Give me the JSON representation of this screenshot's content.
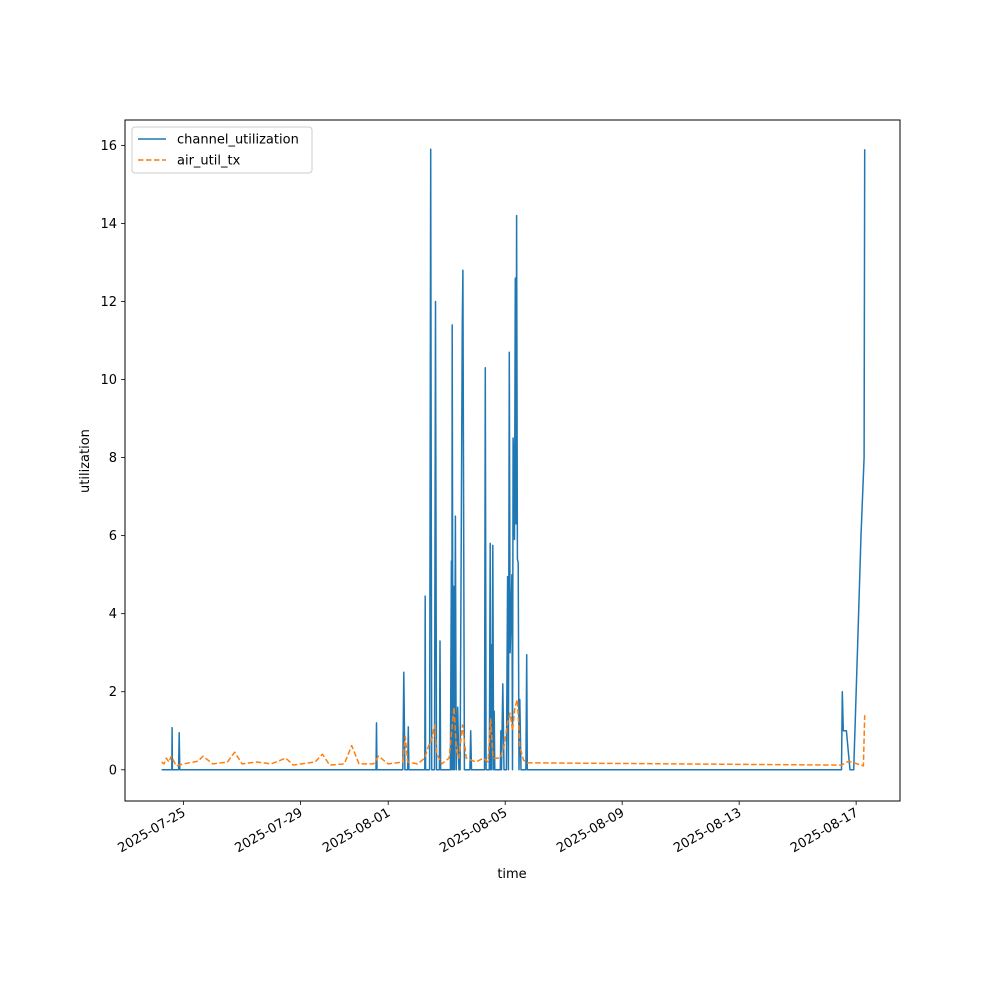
{
  "chart_data": {
    "type": "line",
    "xlabel": "time",
    "ylabel": "utilization",
    "x_range": [
      "2025-07-23T00:00",
      "2025-08-18T12:00"
    ],
    "ylim": [
      -0.8,
      16.65
    ],
    "x_ticks": [
      {
        "date": "2025-07-25T00:00",
        "label": "2025-07-25"
      },
      {
        "date": "2025-07-29T00:00",
        "label": "2025-07-29"
      },
      {
        "date": "2025-08-01T00:00",
        "label": "2025-08-01"
      },
      {
        "date": "2025-08-05T00:00",
        "label": "2025-08-05"
      },
      {
        "date": "2025-08-09T00:00",
        "label": "2025-08-09"
      },
      {
        "date": "2025-08-13T00:00",
        "label": "2025-08-13"
      },
      {
        "date": "2025-08-17T00:00",
        "label": "2025-08-17"
      }
    ],
    "y_ticks": [
      0,
      2,
      4,
      6,
      8,
      10,
      12,
      14,
      16
    ],
    "grid": false,
    "legend_position": "upper-left",
    "series": [
      {
        "name": "channel_utilization",
        "color": "#1f77b4",
        "dash": "solid",
        "points": [
          [
            "2025-07-24T06:00",
            0
          ],
          [
            "2025-07-24T12:00",
            0
          ],
          [
            "2025-07-24T14:24",
            0
          ],
          [
            "2025-07-24T14:40",
            1.08
          ],
          [
            "2025-07-24T14:56",
            0
          ],
          [
            "2025-07-24T20:00",
            0
          ],
          [
            "2025-07-24T20:30",
            0.95
          ],
          [
            "2025-07-24T21:00",
            0
          ],
          [
            "2025-07-31T14:00",
            0
          ],
          [
            "2025-07-31T14:24",
            1.2
          ],
          [
            "2025-07-31T14:48",
            0
          ],
          [
            "2025-08-01T12:00",
            0
          ],
          [
            "2025-08-01T12:50",
            2.5
          ],
          [
            "2025-08-01T13:40",
            0
          ],
          [
            "2025-08-01T16:00",
            0
          ],
          [
            "2025-08-01T16:30",
            1.1
          ],
          [
            "2025-08-01T17:00",
            0
          ],
          [
            "2025-08-02T06:00",
            0
          ],
          [
            "2025-08-02T06:20",
            4.45
          ],
          [
            "2025-08-02T06:40",
            0
          ],
          [
            "2025-08-02T10:00",
            0
          ],
          [
            "2025-08-02T10:50",
            15.9
          ],
          [
            "2025-08-02T11:40",
            0
          ],
          [
            "2025-08-02T14:00",
            0
          ],
          [
            "2025-08-02T14:50",
            12.0
          ],
          [
            "2025-08-02T15:40",
            0
          ],
          [
            "2025-08-02T18:00",
            0
          ],
          [
            "2025-08-02T18:30",
            3.3
          ],
          [
            "2025-08-02T19:00",
            0
          ],
          [
            "2025-08-03T03:00",
            0
          ],
          [
            "2025-08-03T03:50",
            5.35
          ],
          [
            "2025-08-03T04:10",
            0
          ],
          [
            "2025-08-03T04:30",
            11.4
          ],
          [
            "2025-08-03T05:10",
            0
          ],
          [
            "2025-08-03T05:50",
            4.7
          ],
          [
            "2025-08-03T06:20",
            0
          ],
          [
            "2025-08-03T07:10",
            6.5
          ],
          [
            "2025-08-03T07:50",
            0
          ],
          [
            "2025-08-03T09:00",
            1.6
          ],
          [
            "2025-08-03T10:00",
            0
          ],
          [
            "2025-08-03T11:00",
            0
          ],
          [
            "2025-08-03T12:50",
            11.5
          ],
          [
            "2025-08-03T13:20",
            12.8
          ],
          [
            "2025-08-03T14:30",
            0
          ],
          [
            "2025-08-03T19:00",
            0
          ],
          [
            "2025-08-03T19:40",
            1.0
          ],
          [
            "2025-08-03T20:20",
            0
          ],
          [
            "2025-08-04T07:00",
            0
          ],
          [
            "2025-08-04T07:40",
            10.3
          ],
          [
            "2025-08-04T08:20",
            0
          ],
          [
            "2025-08-04T11:00",
            0
          ],
          [
            "2025-08-04T11:40",
            5.8
          ],
          [
            "2025-08-04T12:00",
            0
          ],
          [
            "2025-08-04T12:30",
            3.2
          ],
          [
            "2025-08-04T13:00",
            0
          ],
          [
            "2025-08-04T13:50",
            5.75
          ],
          [
            "2025-08-04T14:30",
            0
          ],
          [
            "2025-08-04T15:00",
            1.5
          ],
          [
            "2025-08-04T15:30",
            0
          ],
          [
            "2025-08-04T20:00",
            0
          ],
          [
            "2025-08-04T20:30",
            1.0
          ],
          [
            "2025-08-04T21:00",
            0
          ],
          [
            "2025-08-04T22:00",
            2.2
          ],
          [
            "2025-08-04T23:00",
            0
          ],
          [
            "2025-08-05T01:00",
            0
          ],
          [
            "2025-08-05T02:00",
            4.95
          ],
          [
            "2025-08-05T02:40",
            0
          ],
          [
            "2025-08-05T03:20",
            10.7
          ],
          [
            "2025-08-05T04:00",
            3.0
          ],
          [
            "2025-08-05T05:30",
            5.0
          ],
          [
            "2025-08-05T06:00",
            0
          ],
          [
            "2025-08-05T06:30",
            8.5
          ],
          [
            "2025-08-05T07:00",
            7.8
          ],
          [
            "2025-08-05T07:40",
            5.9
          ],
          [
            "2025-08-05T08:20",
            12.6
          ],
          [
            "2025-08-05T08:50",
            6.3
          ],
          [
            "2025-08-05T09:20",
            14.2
          ],
          [
            "2025-08-05T10:00",
            5.4
          ],
          [
            "2025-08-05T10:40",
            5.3
          ],
          [
            "2025-08-05T11:20",
            0
          ],
          [
            "2025-08-05T12:00",
            1.8
          ],
          [
            "2025-08-05T13:00",
            0
          ],
          [
            "2025-08-05T17:00",
            0
          ],
          [
            "2025-08-05T17:40",
            2.95
          ],
          [
            "2025-08-05T18:10",
            0
          ],
          [
            "2025-08-16T12:00",
            0
          ],
          [
            "2025-08-16T12:40",
            2.0
          ],
          [
            "2025-08-16T13:30",
            1.0
          ],
          [
            "2025-08-16T16:00",
            1.0
          ],
          [
            "2025-08-16T19:00",
            0
          ],
          [
            "2025-08-16T22:00",
            0
          ],
          [
            "2025-08-17T01:00",
            3.0
          ],
          [
            "2025-08-17T04:00",
            6.0
          ],
          [
            "2025-08-17T06:30",
            8.0
          ],
          [
            "2025-08-17T07:00",
            15.9
          ]
        ]
      },
      {
        "name": "air_util_tx",
        "color": "#ff7f0e",
        "dash": "dashed",
        "points": [
          [
            "2025-07-24T06:00",
            0.2
          ],
          [
            "2025-07-24T08:00",
            0.15
          ],
          [
            "2025-07-24T10:00",
            0.3
          ],
          [
            "2025-07-24T12:00",
            0.2
          ],
          [
            "2025-07-24T14:00",
            0.35
          ],
          [
            "2025-07-24T18:00",
            0.1
          ],
          [
            "2025-07-25T00:00",
            0.15
          ],
          [
            "2025-07-25T12:00",
            0.22
          ],
          [
            "2025-07-25T16:00",
            0.35
          ],
          [
            "2025-07-26T00:00",
            0.15
          ],
          [
            "2025-07-26T12:00",
            0.2
          ],
          [
            "2025-07-26T18:00",
            0.45
          ],
          [
            "2025-07-27T00:00",
            0.15
          ],
          [
            "2025-07-27T12:00",
            0.2
          ],
          [
            "2025-07-28T00:00",
            0.15
          ],
          [
            "2025-07-28T12:00",
            0.3
          ],
          [
            "2025-07-28T18:00",
            0.12
          ],
          [
            "2025-07-29T12:00",
            0.2
          ],
          [
            "2025-07-29T18:00",
            0.4
          ],
          [
            "2025-07-30T00:00",
            0.12
          ],
          [
            "2025-07-30T12:00",
            0.15
          ],
          [
            "2025-07-30T18:00",
            0.62
          ],
          [
            "2025-07-31T00:00",
            0.15
          ],
          [
            "2025-07-31T12:00",
            0.15
          ],
          [
            "2025-07-31T16:00",
            0.35
          ],
          [
            "2025-08-01T00:00",
            0.15
          ],
          [
            "2025-08-01T12:00",
            0.2
          ],
          [
            "2025-08-01T14:00",
            0.85
          ],
          [
            "2025-08-01T16:00",
            0.2
          ],
          [
            "2025-08-02T00:00",
            0.15
          ],
          [
            "2025-08-02T06:00",
            0.3
          ],
          [
            "2025-08-02T09:00",
            0.6
          ],
          [
            "2025-08-02T12:00",
            0.8
          ],
          [
            "2025-08-02T14:00",
            1.15
          ],
          [
            "2025-08-02T16:00",
            0.4
          ],
          [
            "2025-08-02T20:00",
            0.15
          ],
          [
            "2025-08-03T02:00",
            0.3
          ],
          [
            "2025-08-03T06:00",
            1.6
          ],
          [
            "2025-08-03T08:00",
            0.5
          ],
          [
            "2025-08-03T10:00",
            0.3
          ],
          [
            "2025-08-03T13:00",
            1.15
          ],
          [
            "2025-08-03T16:00",
            0.3
          ],
          [
            "2025-08-04T00:00",
            0.2
          ],
          [
            "2025-08-04T06:00",
            0.3
          ],
          [
            "2025-08-04T10:00",
            0.2
          ],
          [
            "2025-08-04T12:00",
            1.3
          ],
          [
            "2025-08-04T14:00",
            0.3
          ],
          [
            "2025-08-04T20:00",
            0.3
          ],
          [
            "2025-08-04T23:00",
            0.6
          ],
          [
            "2025-08-05T02:00",
            1.2
          ],
          [
            "2025-08-05T04:00",
            1.45
          ],
          [
            "2025-08-05T06:00",
            1.0
          ],
          [
            "2025-08-05T08:00",
            1.6
          ],
          [
            "2025-08-05T10:00",
            1.8
          ],
          [
            "2025-08-05T12:00",
            0.6
          ],
          [
            "2025-08-05T15:00",
            0.25
          ],
          [
            "2025-08-05T18:00",
            0.18
          ],
          [
            "2025-08-16T12:00",
            0.12
          ],
          [
            "2025-08-16T18:00",
            0.22
          ],
          [
            "2025-08-17T06:00",
            0.1
          ],
          [
            "2025-08-17T07:00",
            1.4
          ]
        ]
      }
    ]
  }
}
